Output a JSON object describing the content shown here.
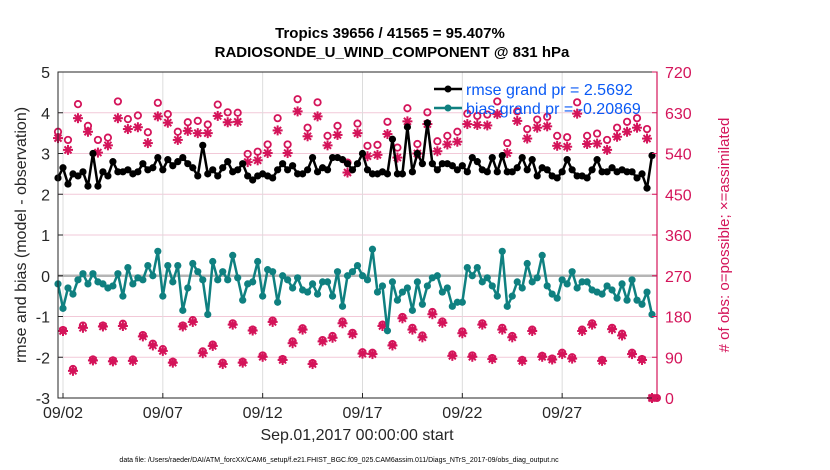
{
  "chart_data": {
    "type": "line",
    "title": [
      "Tropics 39656 / 41565 = 95.407%",
      "RADIOSONDE_U_WIND_COMPONENT @ 831 hPa"
    ],
    "xlabel": "Sep.01,2017 00:00:00 start",
    "ylabel": "rmse and bias (model - observation)",
    "ylabel_right": "# of obs: o=possible; ×=assimilated",
    "footer": "data file: /Users/raeder/DAI/ATM_forcXX/CAM6_setup/f.e21.FHIST_BGC.f09_025.CAM6assim.011/Diags_NTrS_2017-09/obs_diag_output.nc",
    "x_range_days": [
      0.75,
      30.75
    ],
    "x_ticks": [
      {
        "day": 1,
        "label": "09/02"
      },
      {
        "day": 6,
        "label": "09/07"
      },
      {
        "day": 11,
        "label": "09/12"
      },
      {
        "day": 16,
        "label": "09/17"
      },
      {
        "day": 21,
        "label": "09/22"
      },
      {
        "day": 26,
        "label": "09/27"
      }
    ],
    "ylim": [
      -3,
      5
    ],
    "y_ticks": [
      5,
      4,
      3,
      2,
      1,
      0,
      -1,
      -2,
      -3
    ],
    "ylim_right": [
      0,
      720
    ],
    "y_ticks_right": [
      720,
      630,
      540,
      450,
      360,
      270,
      180,
      90,
      0
    ],
    "grid": true,
    "legend_position": "top-right",
    "series": [
      {
        "name": "rmse grand pr = 2.5692",
        "color": "#000000",
        "marker": "filled-circle",
        "values": [
          2.4,
          2.65,
          2.25,
          2.5,
          2.45,
          2.55,
          2.2,
          3.0,
          2.2,
          2.55,
          2.45,
          2.8,
          2.55,
          2.55,
          2.6,
          2.5,
          2.55,
          2.75,
          2.6,
          2.65,
          2.9,
          2.6,
          2.85,
          2.7,
          2.8,
          2.9,
          2.75,
          2.65,
          2.45,
          3.2,
          2.5,
          2.6,
          2.45,
          2.65,
          2.8,
          2.55,
          2.6,
          2.75,
          2.45,
          2.35,
          2.45,
          2.5,
          2.45,
          2.4,
          2.6,
          2.75,
          2.6,
          2.7,
          2.5,
          2.5,
          2.6,
          2.9,
          2.55,
          2.65,
          2.6,
          2.9,
          2.9,
          2.85,
          2.75,
          2.6,
          2.75,
          3.0,
          2.6,
          2.5,
          2.5,
          2.55,
          2.5,
          3.35,
          2.5,
          2.5,
          3.65,
          2.55,
          3.0,
          2.75,
          3.75,
          2.75,
          2.6,
          2.75,
          2.75,
          2.7,
          2.6,
          2.7,
          2.55,
          2.9,
          2.8,
          2.6,
          2.55,
          2.9,
          2.55,
          2.95,
          2.55,
          2.55,
          2.65,
          2.9,
          2.6,
          2.85,
          2.45,
          2.65,
          2.6,
          2.45,
          2.4,
          2.55,
          2.85,
          2.6,
          2.45,
          2.45,
          2.4,
          2.6,
          2.85,
          2.55,
          2.55,
          2.65,
          2.55,
          2.6,
          2.55,
          2.55,
          2.4,
          2.5,
          2.15,
          2.95
        ]
      },
      {
        "name": "bias grand pr = -0.20869",
        "color": "#0f8080",
        "marker": "filled-circle",
        "values": [
          -0.2,
          -0.8,
          -0.3,
          -0.45,
          -0.1,
          0.05,
          -0.2,
          0.05,
          -0.15,
          -0.2,
          -0.3,
          -0.25,
          0.05,
          -0.5,
          0.2,
          -0.2,
          -0.05,
          -0.1,
          0.25,
          0.0,
          0.6,
          -0.5,
          0.25,
          -0.15,
          0.25,
          -0.85,
          -0.3,
          0.3,
          0.1,
          -0.1,
          -0.95,
          0.35,
          -0.1,
          0.1,
          -0.1,
          0.5,
          -0.05,
          -0.6,
          -0.2,
          -0.15,
          0.35,
          -0.5,
          0.15,
          0.1,
          -0.65,
          0.0,
          -0.1,
          -0.3,
          -0.05,
          -0.35,
          -0.4,
          -0.2,
          -0.45,
          -0.15,
          -0.15,
          -0.5,
          0.1,
          -0.75,
          0.0,
          0.1,
          0.25,
          0.0,
          -0.1,
          0.65,
          -0.4,
          -0.25,
          -1.35,
          -0.15,
          -0.6,
          -0.4,
          -0.3,
          -0.85,
          -0.15,
          -0.7,
          -0.25,
          -0.05,
          0.0,
          -0.4,
          -0.3,
          -0.75,
          -0.65,
          -0.65,
          0.2,
          0.0,
          0.2,
          -0.15,
          -0.05,
          -0.25,
          -0.5,
          0.6,
          -0.75,
          -0.5,
          -0.15,
          -0.3,
          0.3,
          -0.15,
          -0.05,
          0.5,
          -0.25,
          -0.45,
          -0.55,
          -0.1,
          -0.2,
          0.1,
          -0.3,
          -0.15,
          -0.15,
          -0.35,
          -0.4,
          -0.45,
          -0.25,
          -0.35,
          -0.55,
          -0.2,
          -0.6,
          -0.1,
          -0.6,
          -0.7,
          -0.4,
          -0.95
        ]
      },
      {
        "name": "possible obs",
        "color": "#d4145a",
        "marker": "open-circle",
        "axis": "right",
        "values": [
          588,
          150,
          570,
          64,
          649,
          160,
          601,
          85,
          570,
          160,
          575,
          83,
          655,
          164,
          616,
          85,
          624,
          139,
          587,
          120,
          652,
          108,
          627,
          80,
          588,
          160,
          609,
          172,
          612,
          103,
          604,
          118,
          648,
          78,
          631,
          165,
          630,
          80,
          539,
          151,
          544,
          94,
          560,
          171,
          618,
          86,
          560,
          125,
          660,
          154,
          597,
          77,
          653,
          128,
          579,
          137,
          601,
          169,
          520,
          144,
          606,
          101,
          557,
          100,
          559,
          162,
          610,
          119,
          553,
          179,
          640,
          155,
          561,
          138,
          631,
          190,
          567,
          169,
          579,
          96,
          588,
          147,
          628,
          94,
          623,
          165,
          626,
          88,
          655,
          155,
          563,
          137,
          633,
          84,
          594,
          151,
          615,
          93,
          621,
          87,
          579,
          100,
          576,
          90,
          653,
          151,
          579,
          165,
          584,
          84,
          570,
          155,
          597,
          142,
          610,
          100,
          618,
          86,
          594,
          0
        ]
      },
      {
        "name": "assimilated obs",
        "color": "#d4145a",
        "marker": "asterisk",
        "axis": "right",
        "values": [
          574,
          148,
          548,
          60,
          618,
          155,
          588,
          83,
          542,
          158,
          558,
          81,
          618,
          159,
          594,
          82,
          598,
          136,
          563,
          116,
          622,
          104,
          608,
          78,
          570,
          158,
          590,
          168,
          585,
          99,
          585,
          115,
          623,
          75,
          609,
          162,
          610,
          78,
          521,
          149,
          525,
          91,
          541,
          168,
          591,
          84,
          541,
          121,
          633,
          151,
          578,
          75,
          622,
          125,
          558,
          133,
          581,
          165,
          498,
          141,
          585,
          98,
          534,
          97,
          537,
          159,
          583,
          116,
          531,
          176,
          611,
          151,
          540,
          134,
          605,
          185,
          545,
          166,
          560,
          93,
          566,
          143,
          605,
          91,
          603,
          162,
          602,
          86,
          627,
          151,
          541,
          134,
          612,
          82,
          573,
          148,
          597,
          91,
          600,
          85,
          557,
          97,
          555,
          87,
          628,
          148,
          561,
          162,
          562,
          82,
          548,
          152,
          577,
          138,
          588,
          97,
          597,
          84,
          573,
          0
        ]
      }
    ]
  }
}
